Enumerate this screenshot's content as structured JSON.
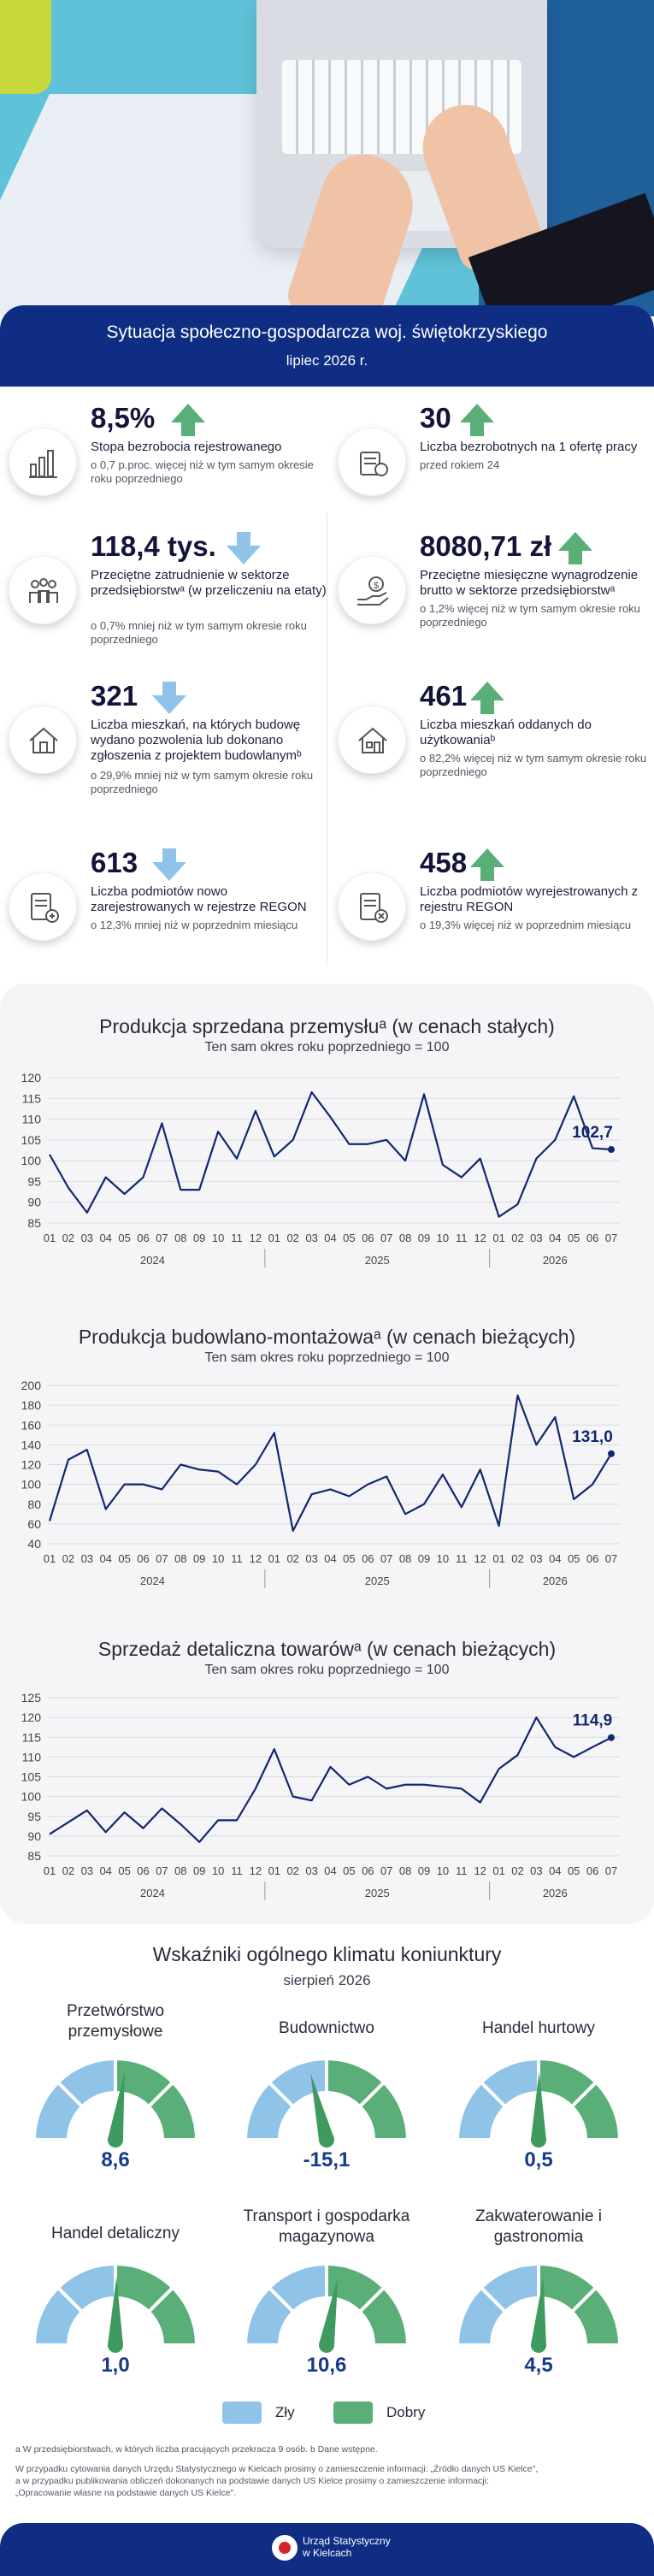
{
  "header": {
    "title": "Sytuacja społeczno-gospodarcza woj. świętokrzyskiego",
    "date": "lipiec 2026 r."
  },
  "indicators": [
    {
      "value": "8,5%",
      "trend": "up",
      "label": "Stopa bezrobocia rejestrowanego",
      "sub": "o 0,7 p.proc. więcej niż w tym samym okresie roku poprzedniego",
      "icon": "bar-chart-icon"
    },
    {
      "value": "30",
      "trend": "up",
      "label": "Liczba bezrobotnych na 1 ofertę pracy",
      "sub": "przed rokiem 24",
      "icon": "job-offer-icon"
    },
    {
      "value": "118,4 tys.",
      "trend": "down",
      "label": "Przeciętne zatrudnienie w sektorze przedsiębiorstwᵃ (w przeliczeniu na etaty)",
      "sub": "o 0,7% mniej niż w tym samym okresie roku poprzedniego",
      "icon": "people-icon"
    },
    {
      "value": "8080,71 zł",
      "trend": "up",
      "label": "Przeciętne miesięczne wynagrodzenie brutto w sektorze przedsiębiorstwᵃ",
      "sub": "o 1,2% więcej niż w tym samym okresie roku poprzedniego",
      "icon": "salary-icon"
    },
    {
      "value": "321",
      "trend": "down",
      "label": "Liczba mieszkań, na których budowę wydano pozwolenia lub dokonano zgłoszenia z projektem budowlanymᵇ",
      "sub": "o 29,9% mniej niż w tym samym okresie roku poprzedniego",
      "icon": "house-plan-icon"
    },
    {
      "value": "461",
      "trend": "up",
      "label": "Liczba mieszkań oddanych do użytkowaniaᵇ",
      "sub": "o 82,2% więcej niż w tym samym okresie roku poprzedniego",
      "icon": "house-icon"
    },
    {
      "value": "613",
      "trend": "down",
      "label": "Liczba podmiotów nowo zarejestrowanych w rejestrze REGON",
      "sub": "o 12,3% mniej niż w poprzednim miesiącu",
      "icon": "register-add-icon"
    },
    {
      "value": "458",
      "trend": "up",
      "label": "Liczba podmiotów wyrejestrowanych z rejestru REGON",
      "sub": "o 19,3% więcej niż w poprzednim miesiącu",
      "icon": "register-remove-icon"
    }
  ],
  "chart_data": [
    {
      "type": "line",
      "title": "Produkcja sprzedana przemysłuᵃ (w cenach stałych)",
      "subtitle": "Ten sam okres roku poprzedniego = 100",
      "x_ticks": [
        "01",
        "02",
        "03",
        "04",
        "05",
        "06",
        "07",
        "08",
        "09",
        "10",
        "11",
        "12",
        "01",
        "02",
        "03",
        "04",
        "05",
        "06",
        "07",
        "08",
        "09",
        "10",
        "11",
        "12",
        "01",
        "02",
        "03",
        "04",
        "05",
        "06",
        "07"
      ],
      "year_labels": [
        "2024",
        "2025",
        "2026"
      ],
      "ylim": [
        85,
        120
      ],
      "y_ticks": [
        85,
        90,
        95,
        100,
        105,
        110,
        115,
        120
      ],
      "values": [
        101.5,
        93.5,
        87.5,
        96,
        92,
        96,
        109,
        93,
        93,
        107,
        100.5,
        112,
        101,
        105,
        116.5,
        110.5,
        104,
        104,
        105,
        100,
        116,
        99,
        96,
        100.5,
        86.5,
        89.5,
        100.5,
        105,
        115.5,
        103,
        102.7
      ],
      "last_label": "102,7",
      "grid": true
    },
    {
      "type": "line",
      "title": "Produkcja budowlano-montażowaᵃ (w cenach bieżących)",
      "subtitle": "Ten sam okres roku poprzedniego = 100",
      "x_ticks": [
        "01",
        "02",
        "03",
        "04",
        "05",
        "06",
        "07",
        "08",
        "09",
        "10",
        "11",
        "12",
        "01",
        "02",
        "03",
        "04",
        "05",
        "06",
        "07",
        "08",
        "09",
        "10",
        "11",
        "12",
        "01",
        "02",
        "03",
        "04",
        "05",
        "06",
        "07"
      ],
      "year_labels": [
        "2024",
        "2025",
        "2026"
      ],
      "ylim": [
        40,
        200
      ],
      "y_ticks": [
        40,
        60,
        80,
        100,
        120,
        140,
        160,
        180,
        200
      ],
      "values": [
        63,
        125,
        135,
        75,
        100,
        100,
        95,
        120,
        115,
        113,
        100,
        120,
        152,
        53,
        90,
        95,
        88,
        100,
        108,
        70,
        80,
        110,
        77,
        115,
        58,
        190,
        140,
        168,
        85,
        100,
        131.0
      ],
      "last_label": "131,0",
      "grid": true
    },
    {
      "type": "line",
      "title": "Sprzedaż detaliczna towarówᵃ (w cenach bieżących)",
      "subtitle": "Ten sam okres roku poprzedniego = 100",
      "x_ticks": [
        "01",
        "02",
        "03",
        "04",
        "05",
        "06",
        "07",
        "08",
        "09",
        "10",
        "11",
        "12",
        "01",
        "02",
        "03",
        "04",
        "05",
        "06",
        "07",
        "08",
        "09",
        "10",
        "11",
        "12",
        "01",
        "02",
        "03",
        "04",
        "05",
        "06",
        "07"
      ],
      "year_labels": [
        "2024",
        "2025",
        "2026"
      ],
      "ylim": [
        85,
        125
      ],
      "y_ticks": [
        85,
        90,
        95,
        100,
        105,
        110,
        115,
        120,
        125
      ],
      "values": [
        90.5,
        93.5,
        96.5,
        91,
        96,
        92,
        97,
        93,
        88.5,
        94,
        94,
        102,
        112,
        100,
        99,
        107.5,
        103,
        105,
        102,
        103,
        103,
        102.5,
        102,
        98.5,
        107,
        110.5,
        120,
        112.5,
        110,
        112.5,
        114.9
      ],
      "last_label": "114,9",
      "grid": true
    }
  ],
  "climate": {
    "title": "Wskaźniki ogólnego klimatu koniunktury",
    "subtitle": "sierpień 2026",
    "range": [
      -100,
      100
    ],
    "gauges": [
      {
        "label": "Przetwórstwo przemysłowe",
        "value": 8.6,
        "value_label": "8,6"
      },
      {
        "label": "Budownictwo",
        "value": -15.1,
        "value_label": "-15,1"
      },
      {
        "label": "Handel hurtowy",
        "value": 0.5,
        "value_label": "0,5"
      },
      {
        "label": "Handel detaliczny",
        "value": 1.0,
        "value_label": "1,0"
      },
      {
        "label": "Transport i gospodarka magazynowa",
        "value": 10.6,
        "value_label": "10,6"
      },
      {
        "label": "Zakwaterowanie i gastronomia",
        "value": 4.5,
        "value_label": "4,5"
      }
    ],
    "legend": {
      "bad": "Zły",
      "good": "Dobry"
    },
    "colors": {
      "bad": "#8fc3e8",
      "good": "#5aae78",
      "needle": "#3e9a5e",
      "arrow_up": "#5aae78",
      "arrow_down": "#8fc3e8",
      "line": "#12276f"
    }
  },
  "footnotes": {
    "line1": "a W przedsiębiorstwach, w których liczba pracujących przekracza 9 osób. b Dane wstępne.",
    "line2": "W przypadku cytowania danych Urzędu Statystycznego w Kielcach prosimy o zamieszczenie informacji: „Źródło danych US Kielce\",",
    "line3": "a w przypadku publikowania obliczeń dokonanych na podstawie danych US Kielce prosimy o zamieszczenie informacji:",
    "line4": "„Opracowanie własne na podstawie danych US Kielce\"."
  },
  "footer": {
    "org_line1": "Urząd Statystyczny",
    "org_line2": "w Kielcach"
  }
}
